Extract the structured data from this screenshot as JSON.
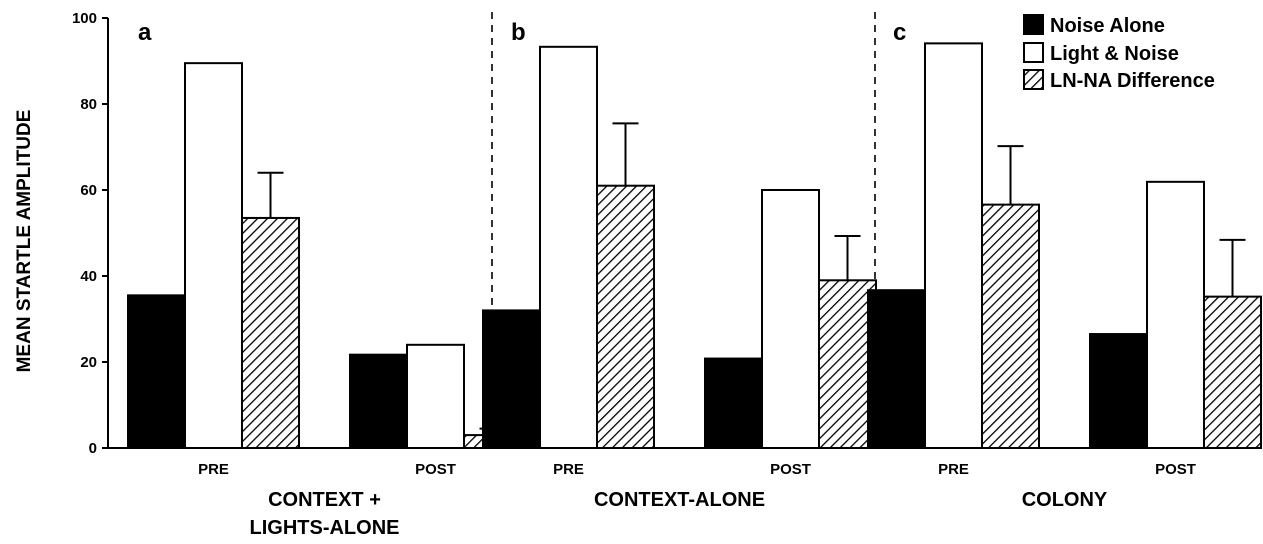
{
  "chart_data": {
    "type": "bar",
    "title": "",
    "ylabel": "MEAN STARTLE AMPLITUDE",
    "ylim": [
      0,
      100
    ],
    "yticks": [
      0,
      20,
      40,
      60,
      80,
      100
    ],
    "grid": false,
    "legend_position": "top-right",
    "legend": [
      {
        "name": "Noise Alone",
        "fill": "solid",
        "color": "#000000"
      },
      {
        "name": "Light & Noise",
        "fill": "open",
        "color": "#ffffff"
      },
      {
        "name": "LN-NA Difference",
        "fill": "hatched",
        "color": "#000000"
      }
    ],
    "panels": [
      {
        "letter": "a",
        "group_label_lines": [
          "CONTEXT +",
          "LIGHTS-ALONE"
        ],
        "categories": [
          "PRE",
          "POST"
        ],
        "series": [
          {
            "name": "Noise Alone",
            "values": [
              35.5,
              21.7
            ]
          },
          {
            "name": "Light & Noise",
            "values": [
              89.5,
              24.0
            ]
          },
          {
            "name": "LN-NA Difference",
            "values": [
              53.5,
              3.0
            ],
            "error": [
              10.5,
              1.5
            ]
          }
        ]
      },
      {
        "letter": "b",
        "group_label_lines": [
          "CONTEXT-ALONE"
        ],
        "categories": [
          "PRE",
          "POST"
        ],
        "series": [
          {
            "name": "Noise Alone",
            "values": [
              32.0,
              20.8
            ]
          },
          {
            "name": "Light & Noise",
            "values": [
              93.3,
              60.0
            ]
          },
          {
            "name": "LN-NA Difference",
            "values": [
              61.0,
              39.0
            ],
            "error": [
              14.5,
              10.3
            ]
          }
        ]
      },
      {
        "letter": "c",
        "group_label_lines": [
          "COLONY"
        ],
        "categories": [
          "PRE",
          "POST"
        ],
        "series": [
          {
            "name": "Noise Alone",
            "values": [
              36.7,
              26.5
            ]
          },
          {
            "name": "Light & Noise",
            "values": [
              94.1,
              61.9
            ]
          },
          {
            "name": "LN-NA Difference",
            "values": [
              56.6,
              35.2
            ],
            "error": [
              13.6,
              13.2
            ]
          }
        ]
      }
    ]
  }
}
